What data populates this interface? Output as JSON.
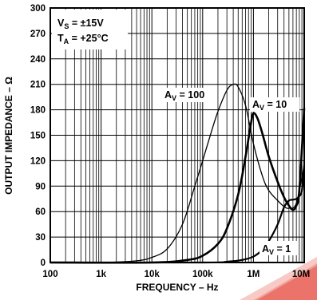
{
  "chart_data": {
    "type": "line",
    "xlabel": "FREQUENCY – Hz",
    "ylabel": "OUTPUT IMPEDANCE – Ω",
    "xscale": "log",
    "xlim": [
      100,
      10000000
    ],
    "ylim": [
      0,
      300
    ],
    "grid": true,
    "x_ticks": [
      {
        "value": 100,
        "label": "100"
      },
      {
        "value": 1000,
        "label": "1k"
      },
      {
        "value": 10000,
        "label": "10k"
      },
      {
        "value": 100000,
        "label": "100k"
      },
      {
        "value": 1000000,
        "label": "1M"
      },
      {
        "value": 10000000,
        "label": "10M"
      }
    ],
    "y_ticks": [
      0,
      30,
      60,
      90,
      120,
      150,
      180,
      210,
      240,
      270,
      300
    ],
    "annotations": {
      "conditions": {
        "vs_main": "V",
        "vs_sub": "S",
        "vs_rest": " = ±15V",
        "ta_main": "T",
        "ta_sub": "A",
        "ta_rest": " = +25°C"
      },
      "av100": {
        "main": "A",
        "sub": "V",
        "rest": " = 100"
      },
      "av10": {
        "main": "A",
        "sub": "V",
        "rest": " = 10"
      },
      "av1": {
        "main": "A",
        "sub": "V",
        "rest": " = 1"
      }
    },
    "series": [
      {
        "key": "av100",
        "x": [
          100,
          1000,
          5000,
          10000,
          20000,
          40000,
          70000,
          100000,
          150000,
          200000,
          300000,
          400000,
          500000,
          700000,
          1000000,
          1500000,
          2000000,
          3000000,
          4000000,
          5000000,
          7000000,
          10000000
        ],
        "y": [
          0,
          0,
          2,
          6,
          16,
          45,
          90,
          120,
          155,
          178,
          203,
          210,
          207,
          185,
          140,
          102,
          85,
          73,
          66,
          64,
          70,
          115
        ]
      },
      {
        "key": "av10",
        "x": [
          100,
          10000,
          50000,
          100000,
          200000,
          300000,
          500000,
          700000,
          900000,
          1000000,
          1200000,
          1500000,
          2000000,
          3000000,
          4000000,
          5000000,
          6000000,
          7000000,
          8000000,
          10000000
        ],
        "y": [
          0,
          0,
          3,
          8,
          22,
          40,
          80,
          125,
          165,
          176,
          170,
          152,
          125,
          95,
          77,
          67,
          62,
          67,
          85,
          182
        ]
      },
      {
        "key": "av1",
        "x": [
          100,
          100000,
          300000,
          600000,
          1000000,
          1500000,
          2000000,
          3000000,
          4000000,
          5000000,
          6000000,
          7000000,
          8000000,
          9000000,
          10000000
        ],
        "y": [
          0,
          0,
          1,
          3,
          7,
          15,
          25,
          45,
          65,
          73,
          74,
          75,
          78,
          85,
          115
        ]
      }
    ]
  }
}
